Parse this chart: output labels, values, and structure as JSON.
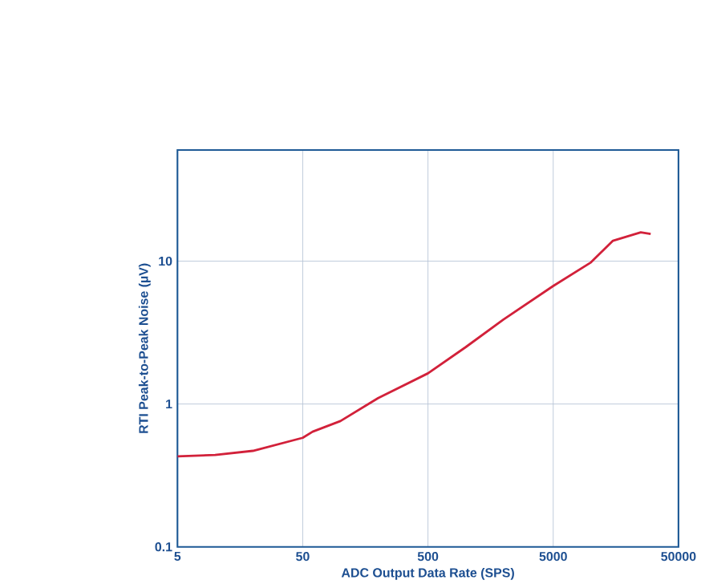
{
  "chart_data": {
    "type": "line",
    "xlabel": "ADC Output Data Rate (SPS)",
    "ylabel": "RTI Peak-to-Peak Noise (µV)",
    "log": "xy",
    "grid": true,
    "marker": "none",
    "line_style": "solid",
    "xlim": [
      5,
      50000
    ],
    "ylim": [
      0.1,
      60
    ],
    "xticks": [
      5,
      50,
      500,
      5000,
      50000
    ],
    "yticks": [
      0.1,
      1,
      10
    ],
    "series": [
      {
        "color": "#d2213a",
        "x": [
          5,
          10,
          20,
          50,
          60,
          100,
          200,
          500,
          1000,
          2000,
          5000,
          10000,
          15000,
          25000,
          30000
        ],
        "values": [
          0.43,
          0.44,
          0.47,
          0.58,
          0.64,
          0.76,
          1.1,
          1.64,
          2.5,
          3.9,
          6.7,
          9.8,
          13.9,
          15.9,
          15.5
        ]
      }
    ]
  }
}
